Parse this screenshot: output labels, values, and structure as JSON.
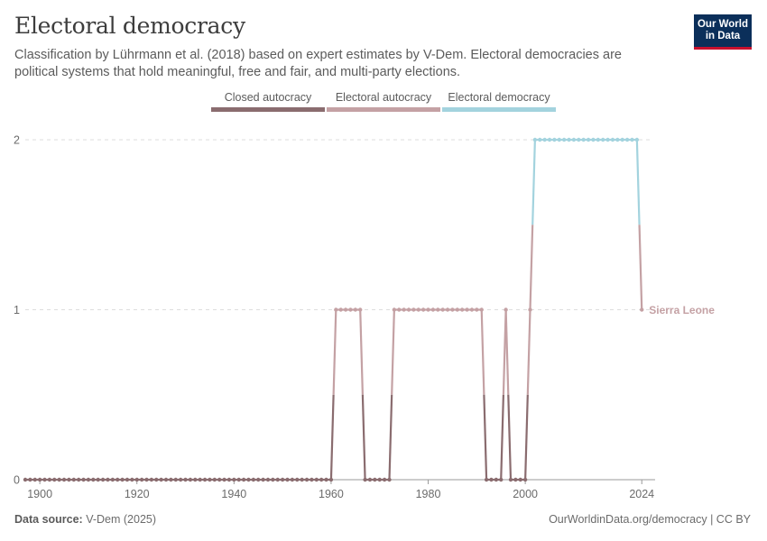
{
  "header": {
    "title": "Electoral democracy",
    "subtitle": "Classification by Lührmann et al. (2018) based on expert estimates by V-Dem. Electoral democracies are political systems that hold meaningful, free and fair, and multi-party elections."
  },
  "logo": {
    "line1": "Our World",
    "line2": "in Data",
    "bg_color": "#0b2f5a",
    "accent_color": "#c8102e"
  },
  "legend": [
    {
      "label": "Closed autocracy",
      "color": "#8a6c6f"
    },
    {
      "label": "Electoral autocracy",
      "color": "#c4a1a4"
    },
    {
      "label": "Electoral democracy",
      "color": "#a3d3de"
    }
  ],
  "footer": {
    "source_label": "Data source:",
    "source_value": "V-Dem (2025)",
    "right": "OurWorldinData.org/democracy | CC BY"
  },
  "chart_data": {
    "type": "line",
    "title": "Electoral democracy",
    "x_range": [
      1897,
      2026
    ],
    "ylim": [
      0,
      2
    ],
    "x_ticks": [
      1900,
      1920,
      1940,
      1960,
      1980,
      2000,
      2024
    ],
    "y_ticks": [
      0,
      1,
      2
    ],
    "grid": "horizontal dashed",
    "category_colors": {
      "0": "#8a6c6f",
      "1": "#c4a1a4",
      "2": "#a3d3de"
    },
    "series": [
      {
        "name": "Sierra Leone",
        "label_color": "#c4a1a4",
        "segments": [
          {
            "from": 1897,
            "to": 1960,
            "value": 0
          },
          {
            "from": 1961,
            "to": 1966,
            "value": 1
          },
          {
            "from": 1967,
            "to": 1972,
            "value": 0
          },
          {
            "from": 1973,
            "to": 1991,
            "value": 1
          },
          {
            "from": 1992,
            "to": 1995,
            "value": 0
          },
          {
            "from": 1996,
            "to": 1996,
            "value": 1
          },
          {
            "from": 1997,
            "to": 2000,
            "value": 0
          },
          {
            "from": 2001,
            "to": 2001,
            "value": 1
          },
          {
            "from": 2002,
            "to": 2023,
            "value": 2
          },
          {
            "from": 2024,
            "to": 2024,
            "value": 1
          }
        ]
      }
    ]
  }
}
